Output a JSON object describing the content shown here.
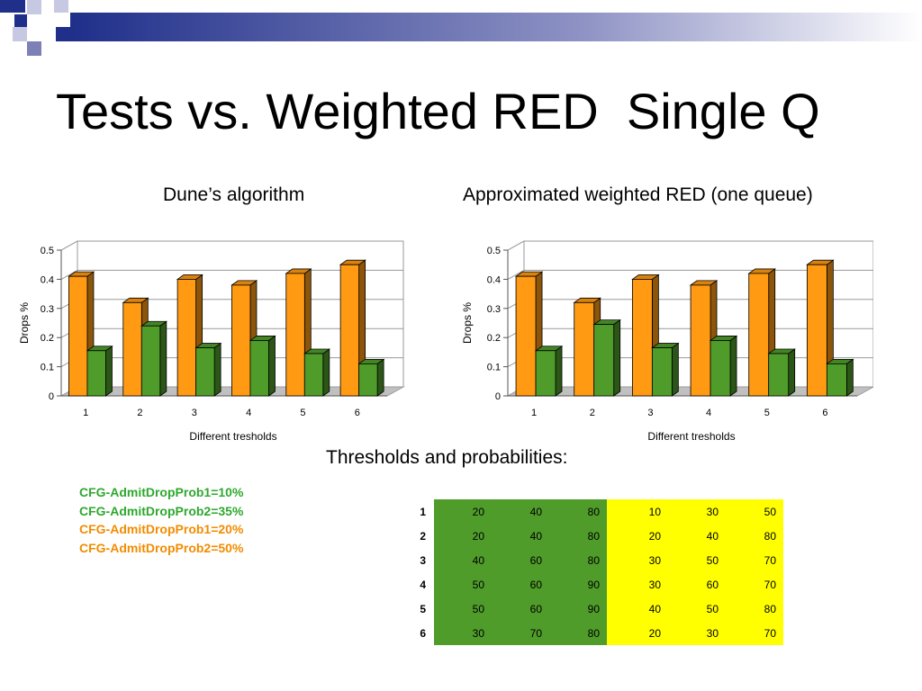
{
  "slide_title": "Tests vs. Weighted RED  Single Q",
  "section_heading": "Thresholds and probabilities:",
  "legend": [
    {
      "text": "CFG-AdmitDropProb1=10%",
      "color": "#2ea82e"
    },
    {
      "text": "CFG-AdmitDropProb2=35%",
      "color": "#2ea82e"
    },
    {
      "text": "CFG-AdmitDropProb1=20%",
      "color": "#f28c00"
    },
    {
      "text": "CFG-AdmitDropProb2=50%",
      "color": "#f28c00"
    }
  ],
  "colors": {
    "orange": "#ff9a12",
    "green": "#4f9c2a",
    "yellow": "#ffff00"
  },
  "chart_data": [
    {
      "type": "bar",
      "title": "Dune’s algorithm",
      "xlabel": "Different tresholds",
      "ylabel": "Drops %",
      "categories": [
        "1",
        "2",
        "3",
        "4",
        "5",
        "6"
      ],
      "ylim": [
        0,
        0.5
      ],
      "yticks": [
        "0",
        "0.1",
        "0.2",
        "0.3",
        "0.4",
        "0.5"
      ],
      "grid": true,
      "series": [
        {
          "color": "#ff9a12",
          "values": [
            0.41,
            0.32,
            0.4,
            0.38,
            0.42,
            0.45
          ]
        },
        {
          "color": "#4f9c2a",
          "values": [
            0.155,
            0.24,
            0.165,
            0.19,
            0.145,
            0.11
          ]
        }
      ]
    },
    {
      "type": "bar",
      "title": "Approximated weighted RED (one queue)",
      "xlabel": "Different tresholds",
      "ylabel": "Drops %",
      "categories": [
        "1",
        "2",
        "3",
        "4",
        "5",
        "6"
      ],
      "ylim": [
        0,
        0.5
      ],
      "yticks": [
        "0",
        "0.1",
        "0.2",
        "0.3",
        "0.4",
        "0.5"
      ],
      "grid": true,
      "series": [
        {
          "color": "#ff9a12",
          "values": [
            0.41,
            0.32,
            0.4,
            0.38,
            0.42,
            0.45
          ]
        },
        {
          "color": "#4f9c2a",
          "values": [
            0.155,
            0.245,
            0.165,
            0.19,
            0.145,
            0.11
          ]
        }
      ]
    }
  ],
  "table": {
    "rows": [
      {
        "label": "1",
        "cells": [
          "20",
          "40",
          "80",
          "10",
          "30",
          "50"
        ]
      },
      {
        "label": "2",
        "cells": [
          "20",
          "40",
          "80",
          "20",
          "40",
          "80"
        ]
      },
      {
        "label": "3",
        "cells": [
          "40",
          "60",
          "80",
          "30",
          "50",
          "70"
        ]
      },
      {
        "label": "4",
        "cells": [
          "50",
          "60",
          "90",
          "30",
          "60",
          "70"
        ]
      },
      {
        "label": "5",
        "cells": [
          "50",
          "60",
          "90",
          "40",
          "50",
          "80"
        ]
      },
      {
        "label": "6",
        "cells": [
          "30",
          "70",
          "80",
          "20",
          "30",
          "70"
        ]
      }
    ]
  }
}
